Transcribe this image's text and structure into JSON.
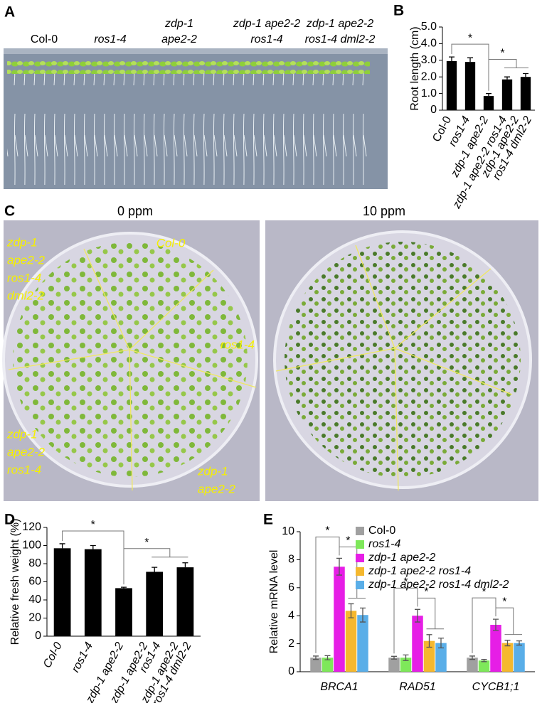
{
  "panel_labels": [
    "A",
    "B",
    "C",
    "D",
    "E"
  ],
  "photo_a": {
    "labels": [
      [
        "Col-0"
      ],
      [
        "ros1-4"
      ],
      [
        "zdp-1",
        "ape2-2"
      ],
      [
        "zdp-1 ape2-2",
        "ros1-4"
      ],
      [
        "zdp-1 ape2-2",
        "ros1-4 dml2-2"
      ]
    ]
  },
  "photo_c": {
    "titles": [
      "0 ppm",
      "10 ppm"
    ],
    "labels": [
      [
        "zdp-1",
        "ape2-2",
        "ros1-4",
        "dml2-2"
      ],
      [
        "Col-0"
      ],
      [
        "ros1-4"
      ],
      [
        "zdp-1",
        "ape2-2",
        "ros1-4"
      ],
      [
        "zdp-1",
        "ape2-2"
      ]
    ]
  },
  "chart_data": [
    {
      "type": "bar",
      "y_label": "Root length (cm)",
      "categories": [
        [
          "Col-0"
        ],
        [
          "ros1-4"
        ],
        [
          "zdp-1 ape2-2"
        ],
        [
          "zdp-1 ape2-2 ros1-4"
        ],
        [
          "zdp-1 ape2-2",
          "ros1-4 dml2-2"
        ]
      ],
      "values": [
        2.95,
        2.9,
        0.85,
        1.85,
        2.0
      ],
      "errors": [
        0.25,
        0.25,
        0.15,
        0.15,
        0.2
      ],
      "color": "#000000",
      "ylim": [
        0,
        5
      ],
      "yticks": [
        0,
        {
          "value": 1,
          "label": "1.0"
        },
        {
          "value": 2,
          "label": "2.0"
        },
        {
          "value": 3,
          "label": "3.0"
        },
        {
          "value": 4,
          "label": "4.0"
        },
        {
          "value": 5,
          "label": "5.0"
        }
      ],
      "annotations": [
        "*",
        "*"
      ]
    },
    {
      "type": "bar",
      "y_label": "Relative fresh weight (%)",
      "categories": [
        [
          "Col-0"
        ],
        [
          "ros1-4"
        ],
        [
          "zdp-1 ape2-2"
        ],
        [
          "zdp-1 ape2-2",
          "ros1-4"
        ],
        [
          "zdp-1 ape2-2",
          "ros1-4 dml2-2"
        ]
      ],
      "values": [
        97,
        96,
        53,
        71,
        76
      ],
      "errors": [
        5,
        4,
        1,
        5,
        5
      ],
      "color": "#000000",
      "ylim": [
        0,
        120
      ],
      "yticks": [
        0,
        20,
        40,
        60,
        80,
        100,
        120
      ],
      "annotations": [
        "*",
        "*"
      ]
    },
    {
      "type": "grouped_bar",
      "y_label": "Relative mRNA level",
      "categories": [
        [
          "BRCA1"
        ],
        [
          "RAD51"
        ],
        [
          "CYCB1;1"
        ]
      ],
      "series": [
        {
          "name": "Col-0",
          "color": "#a0a0a0",
          "values": [
            1.0,
            1.0,
            1.0
          ],
          "errors": [
            0.12,
            0.1,
            0.12
          ]
        },
        {
          "name": "ros1-4",
          "color": "#7ee85a",
          "values": [
            1.0,
            1.0,
            0.8
          ],
          "errors": [
            0.15,
            0.2,
            0.08
          ]
        },
        {
          "name": "zdp-1 ape2-2",
          "color": "#e61ee6",
          "values": [
            7.5,
            4.0,
            3.35
          ],
          "errors": [
            0.6,
            0.45,
            0.4
          ]
        },
        {
          "name": "zdp-1 ape2-2 ros1-4",
          "color": "#f5b82e",
          "values": [
            4.35,
            2.2,
            2.05
          ],
          "errors": [
            0.5,
            0.45,
            0.2
          ]
        },
        {
          "name": "zdp-1 ape2-2 ros1-4 dml2-2",
          "color": "#5aaee8",
          "values": [
            4.05,
            2.05,
            2.05
          ],
          "errors": [
            0.5,
            0.35,
            0.15
          ]
        }
      ],
      "ylim": [
        0,
        10
      ],
      "yticks": [
        0,
        2,
        4,
        6,
        8,
        10
      ],
      "annotations": [
        "*",
        "*",
        "*",
        "*",
        "*",
        "*"
      ]
    }
  ]
}
